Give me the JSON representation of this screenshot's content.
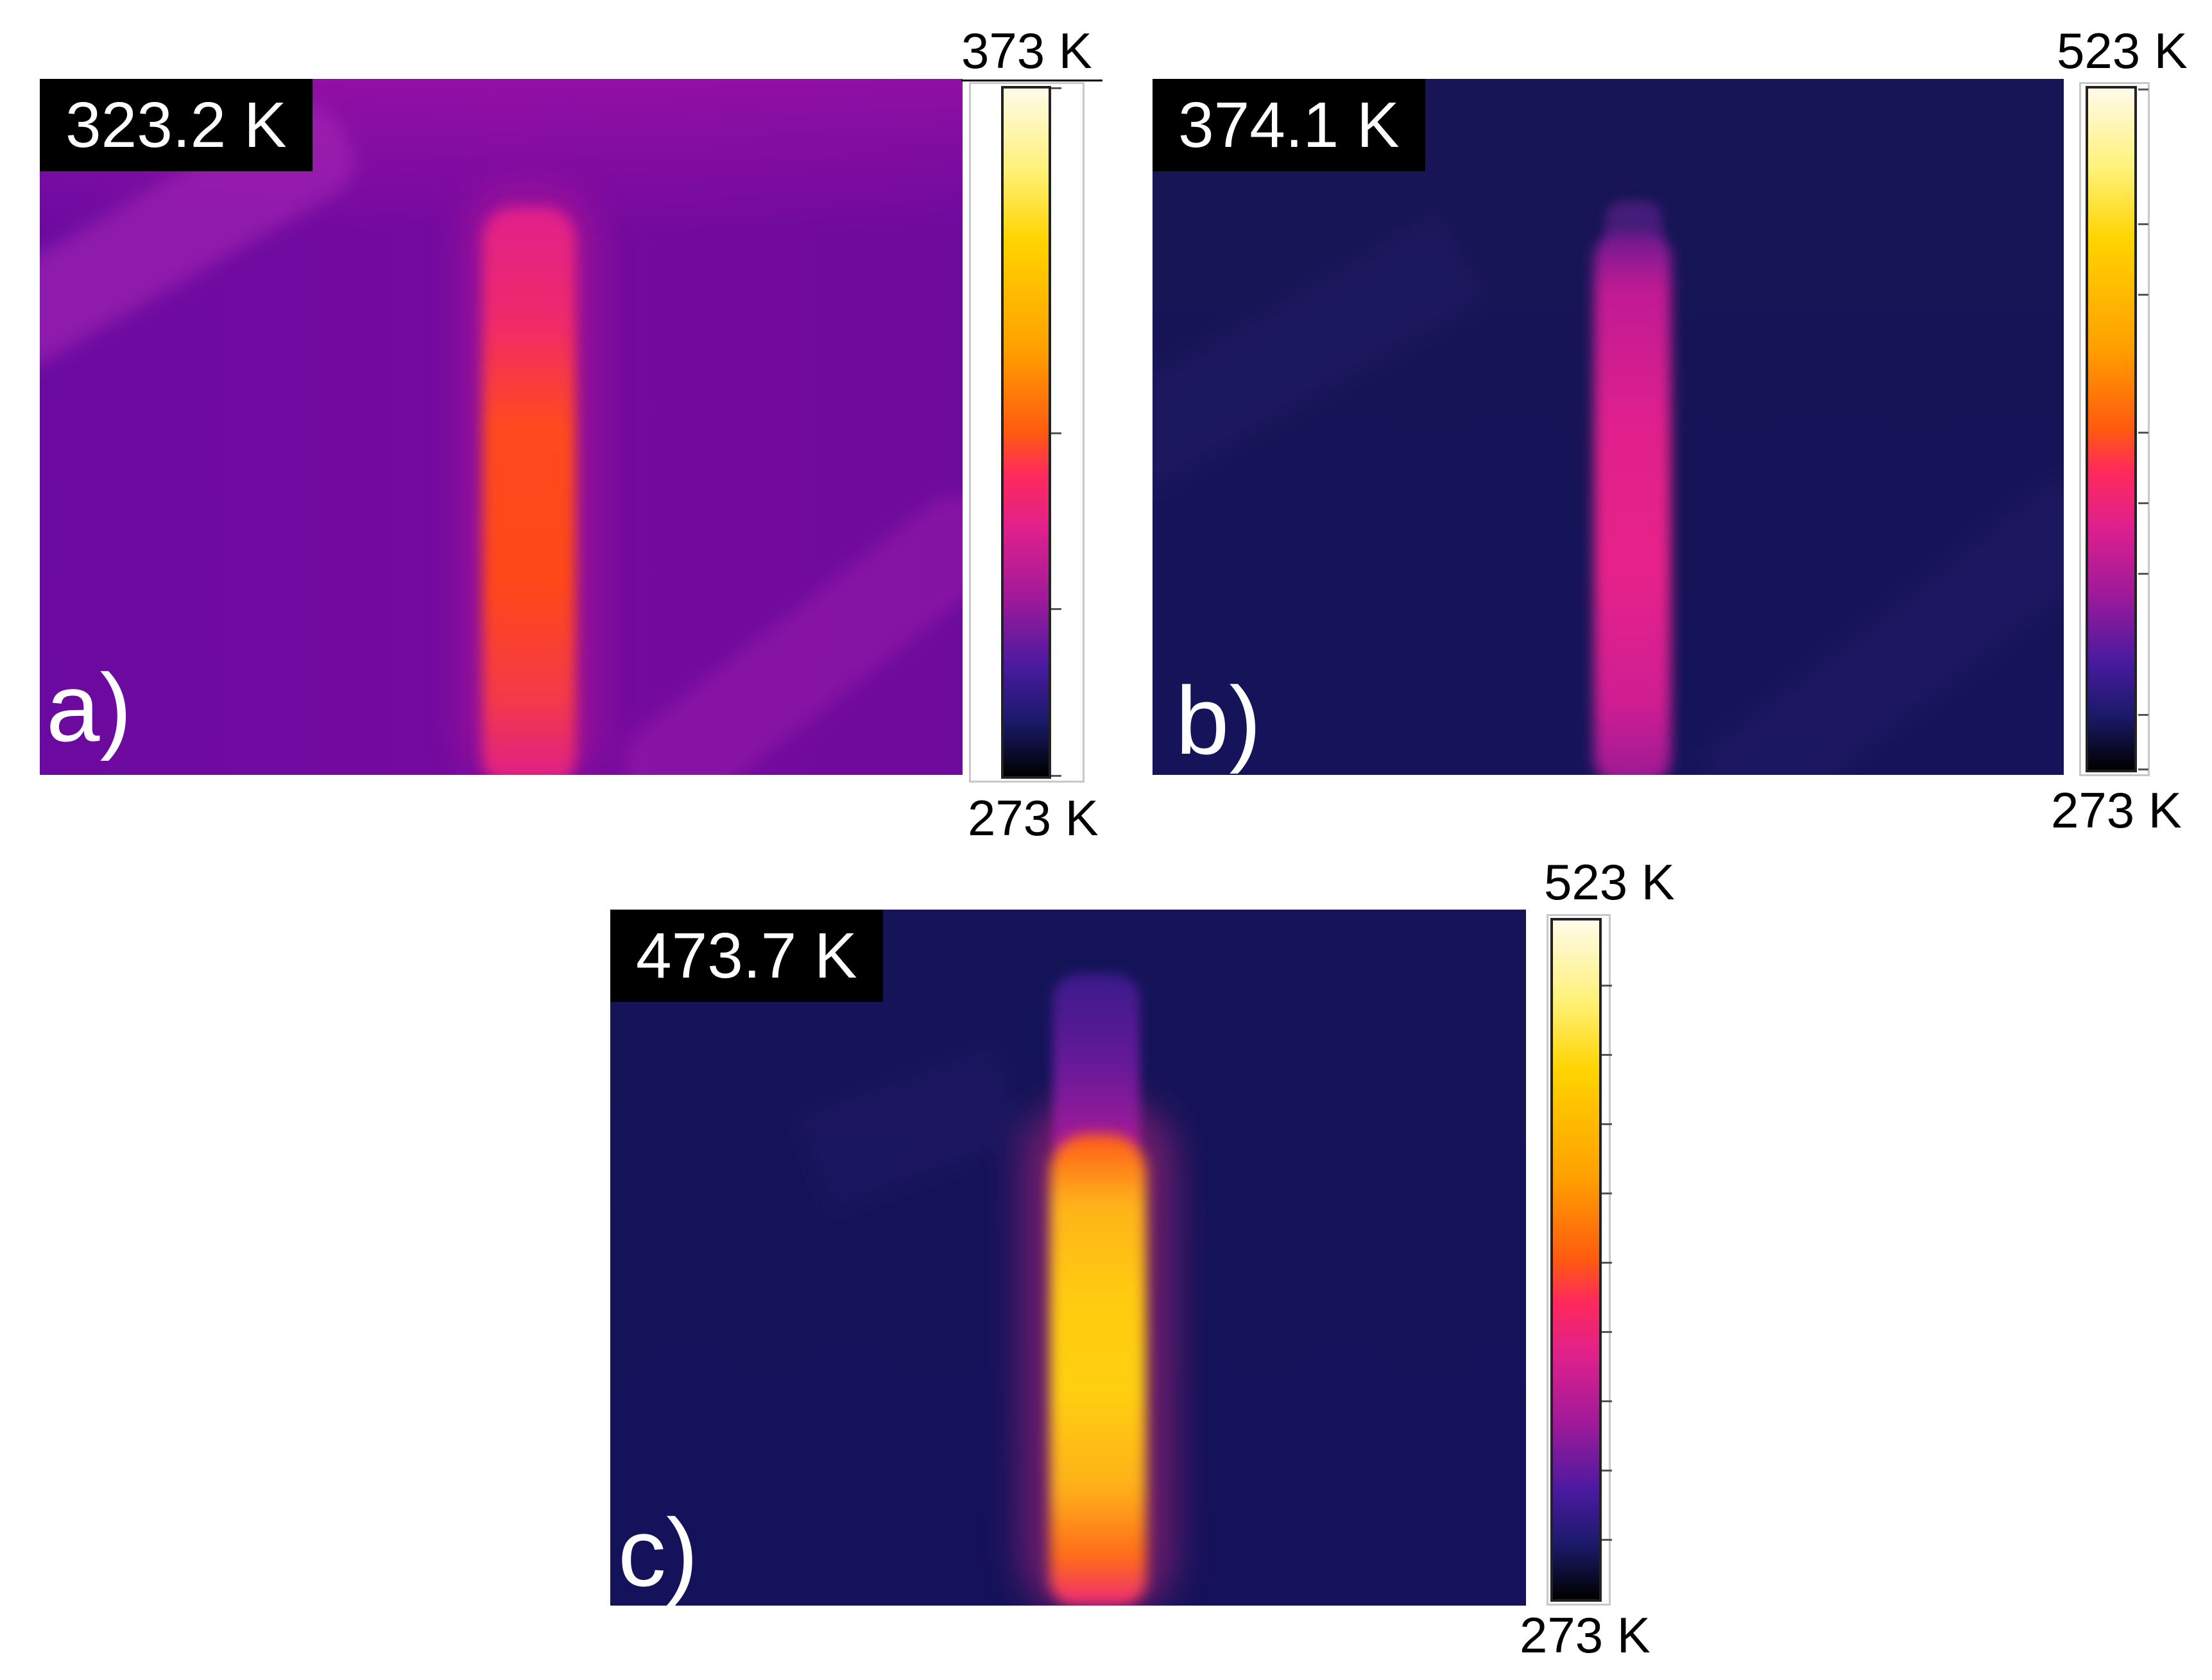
{
  "panels": [
    {
      "label": "a)",
      "temperature": "323.2 K",
      "scale_max": "373 K",
      "scale_min": "273 K"
    },
    {
      "label": "b)",
      "temperature": "374.1 K",
      "scale_max": "523 K",
      "scale_min": "273 K"
    },
    {
      "label": "c)",
      "temperature": "473.7 K",
      "scale_max": "523 K",
      "scale_min": "273 K"
    }
  ],
  "colors": {
    "badge_bg": "#000000",
    "badge_text": "#ffffff",
    "cold_background": "#15145a",
    "warm_background": "#720a9e",
    "hot_core": "#ffcc10"
  }
}
